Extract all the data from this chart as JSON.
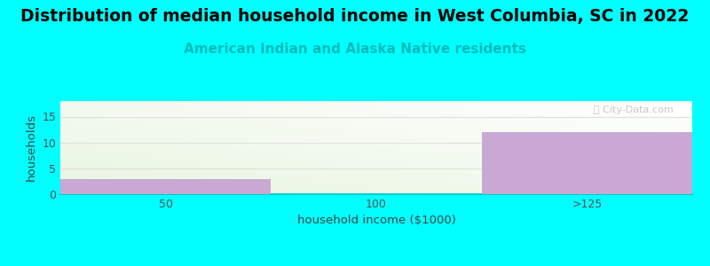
{
  "title": "Distribution of median household income in West Columbia, SC in 2022",
  "subtitle": "American Indian and Alaska Native residents",
  "xlabel": "household income ($1000)",
  "ylabel": "households",
  "background_color": "#00FFFF",
  "plot_bg_color_green": "#e8f5e0",
  "bar_categories": [
    "50",
    "100",
    ">125"
  ],
  "bar_values": [
    3,
    0,
    12
  ],
  "bar_color": "#C9A8D4",
  "ylim": [
    0,
    18
  ],
  "yticks": [
    0,
    5,
    10,
    15
  ],
  "grid_color": "#e0e0e0",
  "title_fontsize": 13.5,
  "subtitle_fontsize": 11,
  "subtitle_color": "#00BBBB",
  "axis_label_fontsize": 9.5,
  "tick_fontsize": 9,
  "watermark_text": "ⓘ City-Data.com"
}
